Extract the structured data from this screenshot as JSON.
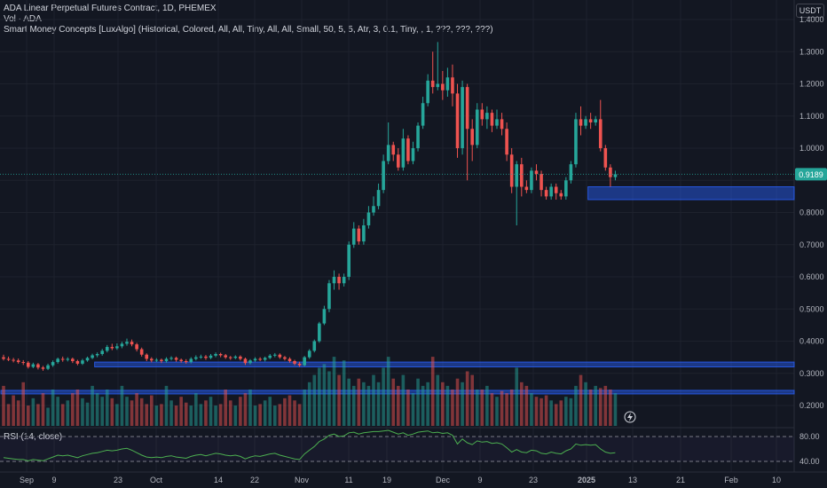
{
  "legend": {
    "title": "ADA Linear Perpetual Futures Contract, 1D, PHEMEX",
    "vol": "Vol · ADA",
    "indicator": "Smart Money Concepts [LuxAlgo] (Historical, Colored, All, All, Tiny, All, All, Small, 50, 5, 5, Atr, 3, 0.1, Tiny, , 1, ???, ???, ???)"
  },
  "currency_label": "USDT",
  "rsi_title": "RSI (14, close)",
  "colors": {
    "up": "#26a69a",
    "down": "#ef5350",
    "zone": "#2962ff",
    "rsi": "#4caf50",
    "bg": "#131722"
  },
  "chart_data": {
    "type": "candlestick",
    "symbol": "ADA Linear Perpetual Futures Contract",
    "interval": "1D",
    "exchange": "PHEMEX",
    "y_range": [
      0.14,
      1.42
    ],
    "y_ticks": [
      "1.4000",
      "1.3000",
      "1.2000",
      "1.1000",
      "1.0000",
      "0.9000",
      "0.8000",
      "0.7000",
      "0.6000",
      "0.5000",
      "0.4000",
      "0.3000",
      "0.2000"
    ],
    "last_price": "0.9189",
    "x_ticks": [
      "Sep",
      "9",
      "23",
      "Oct",
      "14",
      "22",
      "Nov",
      "11",
      "19",
      "Dec",
      "9",
      "23",
      "2025",
      "13",
      "21",
      "Feb",
      "10"
    ],
    "start_date": "2024-08-26",
    "candles": [
      [
        0.35,
        0.345,
        0.358,
        0.34
      ],
      [
        0.345,
        0.342,
        0.352,
        0.338
      ],
      [
        0.342,
        0.34,
        0.348,
        0.334
      ],
      [
        0.34,
        0.335,
        0.346,
        0.33
      ],
      [
        0.335,
        0.333,
        0.341,
        0.326
      ],
      [
        0.333,
        0.32,
        0.338,
        0.315
      ],
      [
        0.32,
        0.328,
        0.333,
        0.316
      ],
      [
        0.328,
        0.318,
        0.332,
        0.312
      ],
      [
        0.318,
        0.314,
        0.323,
        0.308
      ],
      [
        0.314,
        0.325,
        0.33,
        0.31
      ],
      [
        0.325,
        0.335,
        0.34,
        0.32
      ],
      [
        0.335,
        0.345,
        0.349,
        0.33
      ],
      [
        0.345,
        0.342,
        0.352,
        0.336
      ],
      [
        0.342,
        0.345,
        0.35,
        0.337
      ],
      [
        0.345,
        0.338,
        0.349,
        0.332
      ],
      [
        0.338,
        0.33,
        0.342,
        0.325
      ],
      [
        0.33,
        0.34,
        0.345,
        0.326
      ],
      [
        0.34,
        0.348,
        0.352,
        0.336
      ],
      [
        0.348,
        0.356,
        0.361,
        0.344
      ],
      [
        0.356,
        0.36,
        0.365,
        0.35
      ],
      [
        0.36,
        0.37,
        0.376,
        0.355
      ],
      [
        0.37,
        0.382,
        0.388,
        0.365
      ],
      [
        0.382,
        0.378,
        0.392,
        0.372
      ],
      [
        0.378,
        0.384,
        0.393,
        0.373
      ],
      [
        0.384,
        0.392,
        0.398,
        0.378
      ],
      [
        0.392,
        0.398,
        0.408,
        0.386
      ],
      [
        0.398,
        0.39,
        0.405,
        0.384
      ],
      [
        0.39,
        0.375,
        0.395,
        0.368
      ],
      [
        0.375,
        0.358,
        0.38,
        0.352
      ],
      [
        0.358,
        0.345,
        0.362,
        0.338
      ],
      [
        0.345,
        0.34,
        0.35,
        0.334
      ],
      [
        0.34,
        0.342,
        0.347,
        0.335
      ],
      [
        0.342,
        0.338,
        0.346,
        0.332
      ],
      [
        0.338,
        0.345,
        0.35,
        0.333
      ],
      [
        0.345,
        0.348,
        0.353,
        0.34
      ],
      [
        0.348,
        0.342,
        0.352,
        0.336
      ],
      [
        0.342,
        0.338,
        0.346,
        0.333
      ],
      [
        0.338,
        0.335,
        0.344,
        0.33
      ],
      [
        0.335,
        0.345,
        0.35,
        0.331
      ],
      [
        0.345,
        0.35,
        0.356,
        0.34
      ],
      [
        0.35,
        0.352,
        0.358,
        0.345
      ],
      [
        0.352,
        0.348,
        0.357,
        0.342
      ],
      [
        0.348,
        0.355,
        0.36,
        0.344
      ],
      [
        0.355,
        0.36,
        0.365,
        0.35
      ],
      [
        0.36,
        0.356,
        0.364,
        0.35
      ],
      [
        0.356,
        0.35,
        0.36,
        0.345
      ],
      [
        0.35,
        0.348,
        0.354,
        0.342
      ],
      [
        0.348,
        0.352,
        0.356,
        0.344
      ],
      [
        0.352,
        0.345,
        0.356,
        0.34
      ],
      [
        0.345,
        0.332,
        0.349,
        0.326
      ],
      [
        0.332,
        0.34,
        0.344,
        0.328
      ],
      [
        0.34,
        0.345,
        0.35,
        0.336
      ],
      [
        0.345,
        0.342,
        0.35,
        0.338
      ],
      [
        0.342,
        0.348,
        0.352,
        0.337
      ],
      [
        0.348,
        0.355,
        0.36,
        0.344
      ],
      [
        0.355,
        0.358,
        0.363,
        0.35
      ],
      [
        0.358,
        0.35,
        0.362,
        0.345
      ],
      [
        0.35,
        0.345,
        0.354,
        0.34
      ],
      [
        0.345,
        0.338,
        0.35,
        0.333
      ],
      [
        0.338,
        0.33,
        0.342,
        0.325
      ],
      [
        0.33,
        0.325,
        0.336,
        0.32
      ],
      [
        0.325,
        0.35,
        0.354,
        0.322
      ],
      [
        0.35,
        0.37,
        0.375,
        0.345
      ],
      [
        0.37,
        0.4,
        0.405,
        0.365
      ],
      [
        0.4,
        0.455,
        0.46,
        0.395
      ],
      [
        0.455,
        0.5,
        0.51,
        0.45
      ],
      [
        0.5,
        0.58,
        0.59,
        0.49
      ],
      [
        0.58,
        0.6,
        0.62,
        0.56
      ],
      [
        0.6,
        0.58,
        0.61,
        0.56
      ],
      [
        0.58,
        0.6,
        0.61,
        0.57
      ],
      [
        0.6,
        0.7,
        0.71,
        0.59
      ],
      [
        0.7,
        0.75,
        0.77,
        0.69
      ],
      [
        0.75,
        0.71,
        0.76,
        0.7
      ],
      [
        0.71,
        0.76,
        0.78,
        0.7
      ],
      [
        0.76,
        0.8,
        0.82,
        0.75
      ],
      [
        0.8,
        0.82,
        0.85,
        0.79
      ],
      [
        0.82,
        0.87,
        0.89,
        0.81
      ],
      [
        0.87,
        0.96,
        0.98,
        0.86
      ],
      [
        0.96,
        1.01,
        1.08,
        0.95
      ],
      [
        1.01,
        0.98,
        1.02,
        0.96
      ],
      [
        0.98,
        0.94,
        1.0,
        0.93
      ],
      [
        0.94,
        1.03,
        1.06,
        0.93
      ],
      [
        1.03,
        0.96,
        1.04,
        0.95
      ],
      [
        0.96,
        1.0,
        1.02,
        0.95
      ],
      [
        1.0,
        1.07,
        1.08,
        0.99
      ],
      [
        1.07,
        1.14,
        1.16,
        1.06
      ],
      [
        1.14,
        1.21,
        1.23,
        1.13
      ],
      [
        1.21,
        1.19,
        1.3,
        1.17
      ],
      [
        1.19,
        1.2,
        1.33,
        1.18
      ],
      [
        1.2,
        1.18,
        1.24,
        1.15
      ],
      [
        1.18,
        1.22,
        1.25,
        1.16
      ],
      [
        1.22,
        1.17,
        1.26,
        1.13
      ],
      [
        1.17,
        1.0,
        1.2,
        0.97
      ],
      [
        1.0,
        1.19,
        1.21,
        0.98
      ],
      [
        1.19,
        1.06,
        1.2,
        0.9
      ],
      [
        1.06,
        1.01,
        1.09,
        0.96
      ],
      [
        1.01,
        1.12,
        1.14,
        1.0
      ],
      [
        1.12,
        1.09,
        1.14,
        1.07
      ],
      [
        1.09,
        1.11,
        1.13,
        1.06
      ],
      [
        1.11,
        1.07,
        1.12,
        1.05
      ],
      [
        1.07,
        1.09,
        1.12,
        1.06
      ],
      [
        1.09,
        1.06,
        1.11,
        1.04
      ],
      [
        1.06,
        0.98,
        1.08,
        0.96
      ],
      [
        0.98,
        0.88,
        1.0,
        0.86
      ],
      [
        0.88,
        0.95,
        0.96,
        0.76
      ],
      [
        0.95,
        0.88,
        0.97,
        0.85
      ],
      [
        0.88,
        0.87,
        0.9,
        0.86
      ],
      [
        0.87,
        0.93,
        0.94,
        0.86
      ],
      [
        0.93,
        0.92,
        0.95,
        0.9
      ],
      [
        0.92,
        0.87,
        0.93,
        0.85
      ],
      [
        0.87,
        0.85,
        0.88,
        0.84
      ],
      [
        0.85,
        0.88,
        0.89,
        0.84
      ],
      [
        0.88,
        0.86,
        0.89,
        0.84
      ],
      [
        0.86,
        0.85,
        0.87,
        0.84
      ],
      [
        0.85,
        0.9,
        0.91,
        0.84
      ],
      [
        0.9,
        0.95,
        0.96,
        0.89
      ],
      [
        0.95,
        1.09,
        1.11,
        0.94
      ],
      [
        1.09,
        1.07,
        1.13,
        1.04
      ],
      [
        1.07,
        1.09,
        1.1,
        1.06
      ],
      [
        1.09,
        1.08,
        1.11,
        1.06
      ],
      [
        1.08,
        1.09,
        1.1,
        1.07
      ],
      [
        1.09,
        1.0,
        1.15,
        0.99
      ],
      [
        1.0,
        0.94,
        1.01,
        0.93
      ],
      [
        0.94,
        0.91,
        0.95,
        0.88
      ],
      [
        0.91,
        0.919,
        0.93,
        0.9
      ]
    ],
    "volume_ratios": [
      0.55,
      0.3,
      0.42,
      0.35,
      0.6,
      0.28,
      0.38,
      0.3,
      0.45,
      0.25,
      0.5,
      0.4,
      0.3,
      0.35,
      0.45,
      0.5,
      0.38,
      0.32,
      0.55,
      0.45,
      0.4,
      0.5,
      0.38,
      0.3,
      0.55,
      0.4,
      0.35,
      0.45,
      0.38,
      0.3,
      0.42,
      0.28,
      0.3,
      0.55,
      0.35,
      0.28,
      0.4,
      0.32,
      0.28,
      0.45,
      0.3,
      0.35,
      0.4,
      0.28,
      0.3,
      0.5,
      0.35,
      0.28,
      0.4,
      0.45,
      0.5,
      0.28,
      0.3,
      0.35,
      0.4,
      0.28,
      0.3,
      0.38,
      0.42,
      0.35,
      0.3,
      0.5,
      0.6,
      0.7,
      0.8,
      0.85,
      0.75,
      0.95,
      0.7,
      0.9,
      0.65,
      0.55,
      0.65,
      0.6,
      0.55,
      0.7,
      0.6,
      0.8,
      0.95,
      0.65,
      0.55,
      0.7,
      0.5,
      0.45,
      0.65,
      0.55,
      0.6,
      0.95,
      0.7,
      0.6,
      0.55,
      0.5,
      0.65,
      0.6,
      0.75,
      0.7,
      0.5,
      0.5,
      0.55,
      0.45,
      0.4,
      0.48,
      0.45,
      0.5,
      0.8,
      0.6,
      0.55,
      0.45,
      0.4,
      0.38,
      0.42,
      0.35,
      0.3,
      0.35,
      0.4,
      0.38,
      0.55,
      0.7,
      0.6,
      0.5,
      0.55,
      0.52,
      0.55,
      0.5,
      0.45
    ],
    "rsi_levels": [
      "80.00",
      "40.00"
    ],
    "rsi_values": [
      46,
      45,
      44,
      43,
      43,
      41,
      43,
      42,
      41,
      44,
      47,
      50,
      49,
      50,
      48,
      46,
      49,
      51,
      53,
      54,
      56,
      58,
      57,
      58,
      60,
      61,
      58,
      54,
      50,
      47,
      46,
      47,
      46,
      48,
      49,
      47,
      46,
      45,
      48,
      50,
      51,
      49,
      51,
      53,
      52,
      50,
      49,
      50,
      48,
      44,
      47,
      49,
      48,
      50,
      52,
      53,
      50,
      48,
      46,
      44,
      43,
      52,
      58,
      64,
      72,
      76,
      82,
      84,
      80,
      81,
      86,
      87,
      84,
      86,
      87,
      88,
      88,
      89,
      90,
      87,
      84,
      86,
      82,
      84,
      87,
      88,
      89,
      86,
      87,
      85,
      86,
      82,
      68,
      76,
      70,
      67,
      73,
      71,
      72,
      69,
      70,
      68,
      62,
      55,
      59,
      55,
      54,
      58,
      57,
      53,
      52,
      55,
      53,
      52,
      57,
      60,
      68,
      66,
      67,
      66,
      67,
      60,
      55,
      53,
      54
    ],
    "zones": [
      {
        "from": 19,
        "to": "end",
        "low": 0.32,
        "high": 0.335
      },
      {
        "from": 0,
        "to": "end",
        "low": 0.239,
        "high": 0.247
      },
      {
        "from": 119,
        "to": "end",
        "low": 0.84,
        "high": 0.88
      }
    ]
  }
}
